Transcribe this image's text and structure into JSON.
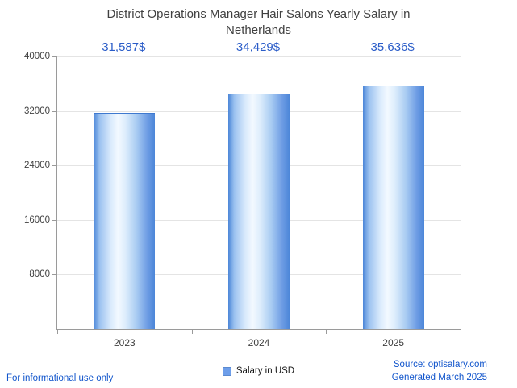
{
  "title": "District Operations Manager Hair Salons Yearly Salary in Netherlands",
  "chart_data": {
    "type": "bar",
    "categories": [
      "2023",
      "2024",
      "2025"
    ],
    "values": [
      31587,
      34429,
      35636
    ],
    "value_labels": [
      "31,587$",
      "34,429$",
      "35,636$"
    ],
    "series": [
      {
        "name": "Salary in USD",
        "values": [
          31587,
          34429,
          35636
        ]
      }
    ],
    "title": "District Operations Manager Hair Salons Yearly Salary in Netherlands",
    "xlabel": "",
    "ylabel": "",
    "ylim": [
      0,
      40000
    ],
    "yticks": [
      8000,
      16000,
      24000,
      32000,
      40000
    ],
    "grid": true,
    "legend_position": "bottom"
  },
  "legend": {
    "label": "Salary in USD"
  },
  "footer": {
    "disclaimer": "For informational use only",
    "source": "Source: optisalary.com",
    "generated": "Generated March 2025"
  },
  "colors": {
    "accent": "#2a5cc8",
    "link": "#1155cc",
    "text": "#404040",
    "axis": "#9a9a9a",
    "grid": "#e4e4e4",
    "bar-edge": "#4c86d8",
    "bar-mid": "#f3f9ff",
    "legend-swatch": "#6d9eea"
  }
}
